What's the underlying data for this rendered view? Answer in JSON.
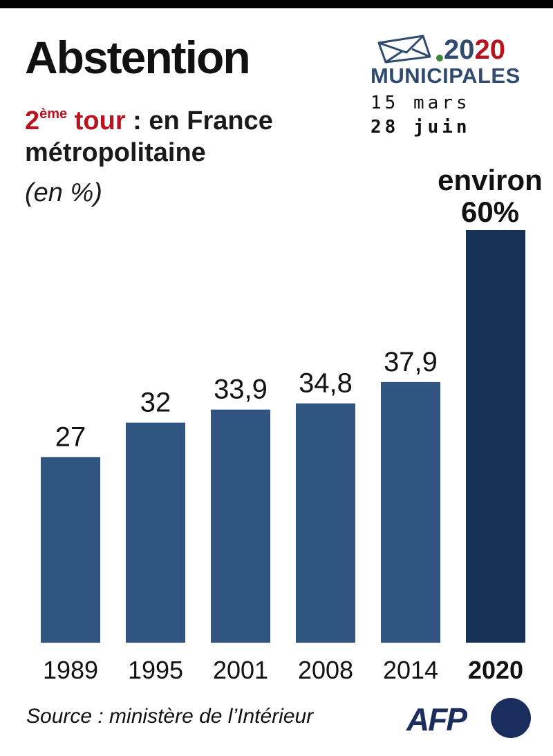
{
  "header": {
    "title": "Abstention",
    "subtitle_tour_number": "2",
    "subtitle_tour_sup": "ème",
    "subtitle_tour_word": "tour",
    "subtitle_rest": ": en France métropolitaine",
    "unit": "(en %)"
  },
  "logo": {
    "year_part1": "20",
    "year_part2": "20",
    "label": "MUNICIPALES",
    "date1": "15 mars",
    "date2": "28 juin",
    "icon": "ballot-envelope-icon"
  },
  "chart_data": {
    "type": "bar",
    "title": "Abstention",
    "categories": [
      "1989",
      "1995",
      "2001",
      "2008",
      "2014",
      "2020"
    ],
    "values": [
      27,
      32,
      33.9,
      34.8,
      37.9,
      60
    ],
    "value_labels": [
      "27",
      "32",
      "33,9",
      "34,8",
      "37,9",
      "environ 60%"
    ],
    "highlight_index": 5,
    "ylim": [
      0,
      60
    ],
    "grid": false,
    "colors": {
      "bar": "#2f5580",
      "highlight": "#163257"
    }
  },
  "footer": {
    "source": "Source : ministère de l’Intérieur",
    "brand": "AFP"
  }
}
